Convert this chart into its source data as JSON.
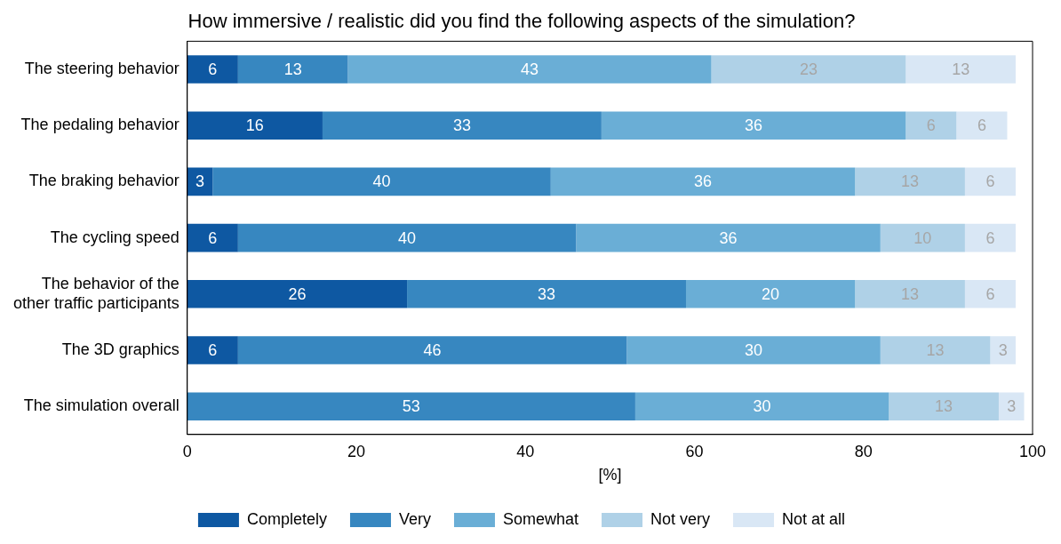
{
  "chart_data": {
    "type": "bar",
    "orientation": "horizontal",
    "stacked": true,
    "title": "How immersive / realistic did you find the following aspects of the simulation?",
    "xlabel": "[%]",
    "categories": [
      "The steering behavior",
      "The pedaling behavior",
      "The braking behavior",
      "The cycling speed",
      "The behavior of the other traffic participants",
      "The 3D graphics",
      "The simulation overall"
    ],
    "xlim": [
      0,
      100
    ],
    "xticks": [
      0,
      20,
      40,
      60,
      80,
      100
    ],
    "grid": false,
    "legend": "bottom",
    "data_labels": true,
    "series": [
      {
        "name": "Completely",
        "color": "#0e58a2",
        "values": [
          6,
          16,
          3,
          6,
          26,
          6,
          null
        ]
      },
      {
        "name": "Very",
        "color": "#3787c0",
        "values": [
          13,
          33,
          40,
          40,
          33,
          46,
          53
        ]
      },
      {
        "name": "Somewhat",
        "color": "#6aaed6",
        "values": [
          43,
          36,
          36,
          36,
          20,
          30,
          30
        ]
      },
      {
        "name": "Not very",
        "color": "#afd1e7",
        "values": [
          23,
          6,
          13,
          10,
          13,
          13,
          13
        ]
      },
      {
        "name": "Not at all",
        "color": "#d9e7f5",
        "values": [
          13,
          6,
          6,
          6,
          6,
          3,
          3
        ]
      }
    ]
  }
}
